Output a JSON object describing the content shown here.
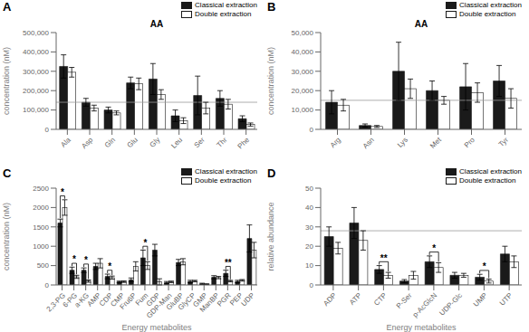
{
  "chart_data": [
    {
      "type": "bar",
      "title": "AA",
      "ylabel": "concentration (nM)",
      "categories": [
        "Ala",
        "Asp",
        "Gln",
        "Glu",
        "Gly",
        "Leu",
        "Ser",
        "Thr",
        "Phe"
      ],
      "series": [
        {
          "name": "Classical extraction",
          "color": "#1a1a1a",
          "values": [
            325000,
            140000,
            100000,
            240000,
            260000,
            70000,
            175000,
            160000,
            55000
          ],
          "errors": [
            60000,
            20000,
            15000,
            30000,
            80000,
            30000,
            100000,
            40000,
            15000
          ]
        },
        {
          "name": "Double extraction",
          "color": "#ffffff",
          "values": [
            295000,
            110000,
            85000,
            235000,
            180000,
            45000,
            110000,
            130000,
            25000
          ],
          "errors": [
            25000,
            15000,
            10000,
            30000,
            25000,
            15000,
            30000,
            25000,
            8000
          ]
        }
      ],
      "ylim": [
        0,
        500000
      ],
      "yticks": [
        0,
        {
          "value": 100000,
          "label": "100,000"
        },
        {
          "value": 200000,
          "label": "200,000"
        },
        {
          "value": 300000,
          "label": "300,000"
        },
        {
          "value": 400000,
          "label": "400,000"
        },
        {
          "value": 500000,
          "label": "500,000"
        }
      ],
      "reference_line": 140000,
      "annotations": [
        {
          "text": "A"
        }
      ],
      "legend": "upper right",
      "grid": false
    },
    {
      "type": "bar",
      "title": "AA",
      "ylabel": "concentration (nM)",
      "categories": [
        "Arg",
        "Asn",
        "Lys",
        "Met",
        "Pro",
        "Tyr"
      ],
      "series": [
        {
          "name": "Classical extraction",
          "color": "#1a1a1a",
          "values": [
            14000,
            2000,
            30000,
            20000,
            22000,
            25000
          ],
          "errors": [
            6000,
            800,
            15000,
            5000,
            12000,
            8000
          ]
        },
        {
          "name": "Double extraction",
          "color": "#ffffff",
          "values": [
            12500,
            1500,
            21000,
            15000,
            19000,
            16000
          ],
          "errors": [
            3000,
            500,
            5000,
            2000,
            5000,
            5000
          ]
        }
      ],
      "ylim": [
        0,
        50000
      ],
      "yticks": [
        0,
        {
          "value": 10000,
          "label": "10,000"
        },
        {
          "value": 20000,
          "label": "20,000"
        },
        {
          "value": 30000,
          "label": "30,000"
        },
        {
          "value": 40000,
          "label": "40,000"
        },
        {
          "value": 50000,
          "label": "50,000"
        }
      ],
      "reference_line": 15000,
      "annotations": [
        {
          "text": "B"
        }
      ],
      "legend": "upper right",
      "grid": false
    },
    {
      "type": "bar",
      "xlabel": "Energy metabolites",
      "ylabel": "concentration (nM)",
      "categories": [
        "2,3-PG",
        "6-PG",
        "a-KG",
        "AMP",
        "CDP",
        "CMP",
        "Fru6P",
        "Fum",
        "GDP",
        "GDP-Man",
        "GluBP",
        "GlyCP",
        "GMP",
        "ManBP",
        "PGR",
        "PEP",
        "UDP"
      ],
      "series": [
        {
          "name": "Classical extraction",
          "color": "#1a1a1a",
          "values": [
            1600,
            380,
            380,
            480,
            220,
            80,
            130,
            700,
            900,
            60,
            580,
            90,
            30,
            200,
            300,
            90,
            1200
          ],
          "errors": [
            100,
            80,
            60,
            80,
            60,
            20,
            50,
            200,
            150,
            30,
            80,
            30,
            15,
            40,
            80,
            30,
            350
          ]
        },
        {
          "name": "Double extraction",
          "color": "#ffffff",
          "values": [
            2000,
            210,
            100,
            560,
            190,
            85,
            480,
            500,
            80,
            80,
            600,
            100,
            20,
            190,
            100,
            120,
            900
          ],
          "errors": [
            200,
            40,
            30,
            120,
            40,
            20,
            120,
            100,
            80,
            20,
            80,
            20,
            10,
            30,
            20,
            20,
            200
          ]
        }
      ],
      "ylim": [
        0,
        2500
      ],
      "yticks": [
        0,
        500,
        1000,
        1500,
        2000,
        2500
      ],
      "annotations": [
        {
          "text": "C"
        },
        {
          "text": "*",
          "category": "2,3-PG"
        },
        {
          "text": "*",
          "category": "6-PG"
        },
        {
          "text": "*",
          "category": "a-KG"
        },
        {
          "text": "*",
          "category": "CDP"
        },
        {
          "text": "*",
          "category": "Fum"
        },
        {
          "text": "**",
          "category": "PGR"
        }
      ],
      "legend": "upper right",
      "grid": false
    },
    {
      "type": "bar",
      "xlabel": "Energy metabolites",
      "ylabel": "relative abundance",
      "categories": [
        "ADP",
        "ATP",
        "CTP",
        "P-Ser",
        "p-AcGlcN",
        "UDP-Glc",
        "UMP",
        "UTP"
      ],
      "series": [
        {
          "name": "Classical extraction",
          "color": "#1a1a1a",
          "values": [
            25,
            32,
            8,
            2,
            12,
            5,
            4,
            16
          ],
          "errors": [
            5,
            8,
            2,
            0.8,
            3,
            1.5,
            1.5,
            4
          ]
        },
        {
          "name": "Double extraction",
          "color": "#ffffff",
          "values": [
            19,
            23,
            5,
            5,
            9,
            5,
            2,
            12
          ],
          "errors": [
            3,
            5,
            1.5,
            2,
            2.5,
            1,
            1,
            3
          ]
        }
      ],
      "ylim": [
        0,
        50
      ],
      "yticks": [
        0,
        10,
        20,
        30,
        40,
        50
      ],
      "reference_line": 28,
      "annotations": [
        {
          "text": "D"
        },
        {
          "text": "**",
          "category": "CTP"
        },
        {
          "text": "*",
          "category": "p-AcGlcN"
        },
        {
          "text": "*",
          "category": "UMP"
        }
      ],
      "legend": "upper right",
      "grid": false
    }
  ]
}
